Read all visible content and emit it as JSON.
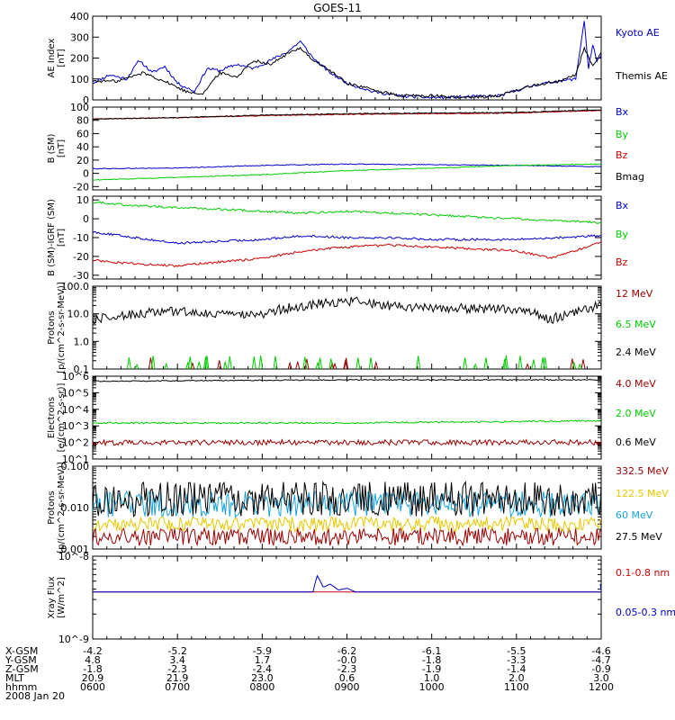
{
  "title": "GOES-11",
  "date_label": "2008 Jan 20",
  "footer": {
    "row_labels": [
      "X-GSM",
      "Y-GSM",
      "Z-GSM",
      "MLT",
      "hhmm"
    ],
    "columns": [
      {
        "values": [
          "-4.2",
          "4.8",
          "-1.8",
          "20.9",
          "0600"
        ]
      },
      {
        "values": [
          "-5.2",
          "3.4",
          "-2.3",
          "21.9",
          "0700"
        ]
      },
      {
        "values": [
          "-5.9",
          "1.7",
          "-2.4",
          "23.0",
          "0800"
        ]
      },
      {
        "values": [
          "-6.2",
          "-0.0",
          "-2.3",
          "0.6",
          "0900"
        ]
      },
      {
        "values": [
          "-6.1",
          "-1.8",
          "-1.9",
          "1.0",
          "1000"
        ]
      },
      {
        "values": [
          "-5.5",
          "-3.3",
          "-1.4",
          "2.0",
          "1100"
        ]
      },
      {
        "values": [
          "-4.6",
          "-4.7",
          "-0.9",
          "3.0",
          "1200"
        ]
      }
    ]
  },
  "chart_data": [
    {
      "type": "line",
      "panel": "ae",
      "ylabel": "AE Index\n[nT]",
      "ylim": [
        0,
        400
      ],
      "yscale": "linear",
      "yticks": [
        0,
        100,
        200,
        300,
        400
      ],
      "ytick_labels": [
        "0",
        "100",
        "200",
        "300",
        "400"
      ],
      "x_hours": [
        6,
        12
      ],
      "series": [
        {
          "name": "Kyoto AE",
          "color": "#0000cc",
          "x": [
            6.0,
            6.2,
            6.4,
            6.55,
            6.7,
            6.85,
            7.0,
            7.2,
            7.35,
            7.5,
            7.7,
            7.9,
            8.1,
            8.3,
            8.45,
            8.6,
            8.8,
            9.0,
            9.3,
            9.6,
            10.0,
            10.4,
            10.8,
            11.2,
            11.5,
            11.7,
            11.8,
            11.85,
            11.9,
            11.95,
            12.0
          ],
          "y": [
            80,
            120,
            100,
            190,
            130,
            160,
            80,
            40,
            150,
            140,
            170,
            150,
            190,
            230,
            280,
            200,
            130,
            80,
            40,
            20,
            10,
            15,
            20,
            70,
            90,
            100,
            380,
            150,
            260,
            190,
            210
          ]
        },
        {
          "name": "Themis AE",
          "color": "#000000",
          "x": [
            6.0,
            6.3,
            6.6,
            6.9,
            7.1,
            7.3,
            7.5,
            7.7,
            7.9,
            8.1,
            8.3,
            8.45,
            8.6,
            8.8,
            9.0,
            9.3,
            9.6,
            10.0,
            10.4,
            10.8,
            11.2,
            11.5,
            11.7,
            11.8,
            11.9,
            12.0
          ],
          "y": [
            90,
            90,
            130,
            80,
            40,
            30,
            130,
            110,
            190,
            170,
            220,
            250,
            190,
            140,
            80,
            50,
            20,
            20,
            10,
            20,
            70,
            90,
            120,
            250,
            160,
            220
          ]
        }
      ]
    },
    {
      "type": "line",
      "panel": "b_sm",
      "ylabel": "B (SM)\n[nT]",
      "ylim": [
        -25,
        100
      ],
      "yscale": "linear",
      "yticks": [
        -20,
        0,
        20,
        40,
        60,
        80,
        100
      ],
      "ytick_labels": [
        "-20",
        "0",
        "20",
        "40",
        "60",
        "80",
        "100"
      ],
      "series": [
        {
          "name": "Bx",
          "color": "#0000cc",
          "x": [
            6,
            7,
            8,
            9,
            10,
            11,
            12
          ],
          "y": [
            7,
            8,
            12,
            14,
            13,
            12,
            10
          ]
        },
        {
          "name": "By",
          "color": "#00cc00",
          "x": [
            6,
            7,
            8,
            9,
            10,
            11,
            12
          ],
          "y": [
            -10,
            -6,
            -2,
            4,
            8,
            12,
            14
          ]
        },
        {
          "name": "Bz",
          "color": "#cc0000",
          "x": [
            6,
            7,
            8,
            9,
            10,
            11,
            12
          ],
          "y": [
            82,
            84,
            87,
            89,
            90,
            91,
            95
          ]
        },
        {
          "name": "Bmag",
          "color": "#000000",
          "x": [
            6,
            7,
            8,
            9,
            10,
            11,
            12
          ],
          "y": [
            82,
            84,
            88,
            90,
            91,
            92,
            96
          ]
        }
      ]
    },
    {
      "type": "line",
      "panel": "b_minus_igrf",
      "ylabel": "B (SM)-IGRF (SM)\n[nT]",
      "ylim": [
        -32,
        12
      ],
      "yscale": "linear",
      "yticks": [
        -30,
        -20,
        -10,
        0,
        10
      ],
      "ytick_labels": [
        "-30",
        "-20",
        "-10",
        "0",
        "10"
      ],
      "series": [
        {
          "name": "Bx",
          "color": "#0000cc",
          "x": [
            6,
            6.5,
            7,
            7.5,
            8,
            8.5,
            9,
            9.5,
            10,
            10.5,
            11,
            11.5,
            12
          ],
          "y": [
            -7,
            -10,
            -13,
            -12,
            -11,
            -9,
            -10,
            -10,
            -11,
            -11,
            -11,
            -10,
            -9
          ]
        },
        {
          "name": "By",
          "color": "#00cc00",
          "x": [
            6,
            6.5,
            7,
            7.5,
            8,
            8.5,
            9,
            9.5,
            10,
            10.5,
            11,
            11.5,
            12
          ],
          "y": [
            9,
            7,
            6,
            5,
            4,
            3,
            4,
            3,
            2,
            1,
            0,
            -1,
            -2
          ]
        },
        {
          "name": "Bz",
          "color": "#cc0000",
          "x": [
            6,
            6.5,
            7,
            7.5,
            8,
            8.5,
            9,
            9.5,
            10,
            10.5,
            11,
            11.4,
            11.7,
            12
          ],
          "y": [
            -22,
            -24,
            -25,
            -23,
            -21,
            -17,
            -15,
            -14,
            -15,
            -16,
            -17,
            -21,
            -17,
            -12
          ]
        }
      ]
    },
    {
      "type": "line",
      "panel": "protons_high",
      "ylabel": "Protons\n[p/(cm^2-s-sr-MeV)]",
      "ylim": [
        0.1,
        100.0
      ],
      "yscale": "log",
      "yticks": [
        0.1,
        1.0,
        10.0,
        100.0
      ],
      "ytick_labels": [
        "0.1",
        "1.0",
        "10.0",
        "100.0"
      ],
      "series": [
        {
          "name": "12 MeV",
          "color": "#990000"
        },
        {
          "name": "6.5 MeV",
          "color": "#00cc00"
        },
        {
          "name": "2.4 MeV",
          "color": "#000000",
          "x": [
            6,
            6.5,
            7,
            7.5,
            8,
            8.5,
            9,
            9.5,
            10,
            10.5,
            11,
            11.4,
            11.7,
            12
          ],
          "y": [
            6,
            10,
            12,
            9,
            10,
            20,
            30,
            20,
            15,
            16,
            14,
            6,
            12,
            20
          ]
        }
      ]
    },
    {
      "type": "line",
      "panel": "electrons",
      "ylabel": "Electrons\n[e/(cm^2-s-sr)]",
      "ylim": [
        10,
        1000000
      ],
      "yscale": "log",
      "yticks": [
        10,
        100,
        1000,
        10000,
        100000,
        1000000
      ],
      "ytick_labels": [
        "10^1",
        "10^2",
        "10^3",
        "10^4",
        "10^5",
        "10^6"
      ],
      "series": [
        {
          "name": "4.0 MeV",
          "color": "#990000",
          "x": [
            6,
            9,
            12
          ],
          "y": [
            100,
            100,
            100
          ]
        },
        {
          "name": "2.0 MeV",
          "color": "#00cc00",
          "x": [
            6,
            9,
            12
          ],
          "y": [
            1500,
            1500,
            2000
          ]
        },
        {
          "name": "0.6 MeV",
          "color": "#000000",
          "x": [
            6,
            9,
            12
          ],
          "y": [
            500000,
            600000,
            600000
          ]
        }
      ]
    },
    {
      "type": "line",
      "panel": "protons_very_high",
      "ylabel": "Protons\n[p/(cm^2-s-sr-MeV)]",
      "ylim": [
        0.001,
        0.1
      ],
      "yscale": "log",
      "yticks": [
        0.001,
        0.01,
        0.1
      ],
      "ytick_labels": [
        "0.001",
        "0.010",
        "0.100"
      ],
      "series": [
        {
          "name": "332.5 MeV",
          "color": "#990000",
          "level": 0.002
        },
        {
          "name": "122.5 MeV",
          "color": "#e6c800",
          "level": 0.004
        },
        {
          "name": "60 MeV",
          "color": "#1aa3d9",
          "level": 0.012
        },
        {
          "name": "27.5 MeV",
          "color": "#000000",
          "level": 0.016
        }
      ]
    },
    {
      "type": "line",
      "panel": "xray",
      "ylabel": "Xray Flux\n[W/m^2]",
      "ylim": [
        1e-09,
        1e-08
      ],
      "yscale": "log",
      "yticks": [
        1e-09,
        1e-08
      ],
      "ytick_labels": [
        "10^-9",
        "10^-8"
      ],
      "series": [
        {
          "name": "0.1-0.8 nm",
          "color": "#cc0000",
          "x": [
            6,
            12
          ],
          "y": [
            3.7e-09,
            3.7e-09
          ]
        },
        {
          "name": "0.05-0.3 nm",
          "color": "#0000cc",
          "x": [
            6,
            8.6,
            8.65,
            8.72,
            8.8,
            8.9,
            9.0,
            9.1,
            12
          ],
          "y": [
            3.7e-09,
            3.7e-09,
            5.8e-09,
            4.2e-09,
            4.6e-09,
            3.9e-09,
            4.1e-09,
            3.7e-09,
            3.7e-09
          ]
        }
      ]
    }
  ]
}
